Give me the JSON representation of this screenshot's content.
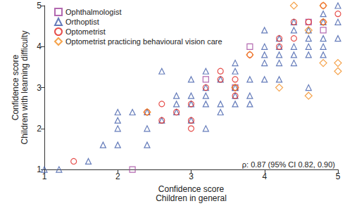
{
  "chart_data": {
    "type": "scatter",
    "xlabel": "Confidence score\nChildren in general",
    "ylabel": "Confidence score\nChildren with learning difficulty",
    "annotation": "ρ: 0.87 (95% CI 0.82, 0.90)",
    "xlim": [
      1,
      5
    ],
    "xticks": [
      1,
      2,
      3,
      4,
      5
    ],
    "ylim": [
      1,
      5
    ],
    "yticks": [
      1,
      2,
      3,
      4,
      5
    ],
    "grid": false,
    "legend": "top-left",
    "series": [
      {
        "name": "Ophthalmologist",
        "color": "#a0449c",
        "marker": "square",
        "x": [
          3.8,
          3.2,
          2.2,
          4.6,
          4.8,
          3.6
        ],
        "values": [
          4.0,
          3.2,
          1.0,
          4.6,
          4.4,
          3.0
        ]
      },
      {
        "name": "Orthoptist",
        "color": "#3f5ba9",
        "marker": "triangle",
        "x": [
          1.0,
          1.2,
          1.6,
          1.8,
          2.0,
          2.0,
          2.0,
          2.0,
          2.2,
          2.4,
          2.4,
          2.4,
          2.6,
          2.6,
          2.8,
          2.8,
          2.8,
          3.0,
          3.0,
          3.0,
          3.0,
          3.2,
          3.2,
          3.2,
          3.2,
          3.2,
          3.4,
          3.4,
          3.4,
          3.6,
          3.6,
          3.6,
          3.6,
          3.6,
          3.8,
          3.8,
          3.8,
          4.0,
          4.0,
          4.0,
          4.0,
          4.0,
          4.2,
          4.2,
          4.2,
          4.2,
          4.4,
          4.4,
          4.4,
          4.4,
          4.6,
          4.6,
          4.6,
          4.6,
          4.6,
          4.8,
          4.8,
          4.8,
          4.8,
          4.8,
          5.0,
          5.0,
          5.0,
          4.2,
          4.4
        ],
        "values": [
          1.0,
          1.0,
          1.2,
          1.6,
          1.6,
          2.0,
          2.2,
          2.4,
          2.4,
          2.0,
          1.6,
          2.4,
          3.4,
          2.2,
          2.8,
          2.6,
          2.4,
          3.2,
          2.8,
          2.6,
          2.2,
          3.0,
          3.4,
          2.8,
          2.6,
          2.0,
          3.2,
          2.6,
          2.4,
          3.6,
          3.4,
          3.0,
          2.8,
          2.6,
          3.2,
          2.8,
          2.6,
          4.4,
          4.0,
          3.8,
          3.6,
          3.2,
          4.0,
          3.8,
          3.6,
          3.2,
          4.4,
          4.0,
          3.8,
          3.6,
          4.4,
          4.2,
          4.0,
          3.8,
          3.0,
          4.8,
          4.6,
          4.2,
          4.0,
          3.8,
          5.0,
          4.6,
          4.2,
          4.2,
          4.6
        ]
      },
      {
        "name": "Optometrist",
        "color": "#e0231f",
        "marker": "circle",
        "x": [
          1.4,
          2.4,
          2.6,
          2.6,
          2.8,
          3.0,
          3.0,
          3.2,
          3.4,
          3.4,
          3.6,
          3.6,
          3.8,
          4.2,
          4.2,
          4.4,
          4.4,
          4.6,
          4.8,
          4.8,
          5.0,
          3.0,
          3.6
        ],
        "values": [
          1.2,
          2.4,
          2.6,
          2.2,
          2.4,
          2.0,
          2.6,
          3.0,
          3.2,
          3.4,
          3.2,
          2.8,
          3.8,
          4.2,
          4.0,
          4.2,
          4.6,
          4.6,
          4.6,
          5.0,
          4.8,
          2.2,
          3.0
        ]
      },
      {
        "name": "Optometrist practicing behavioural vision care",
        "color": "#f28c1f",
        "marker": "diamond",
        "x": [
          2.4,
          3.6,
          3.8,
          4.2,
          4.4,
          4.6,
          4.8,
          4.8,
          4.8,
          5.0,
          5.0,
          4.6
        ],
        "values": [
          2.4,
          3.0,
          3.8,
          3.0,
          5.0,
          2.8,
          4.6,
          5.0,
          3.6,
          3.6,
          3.4,
          4.4
        ]
      }
    ]
  }
}
